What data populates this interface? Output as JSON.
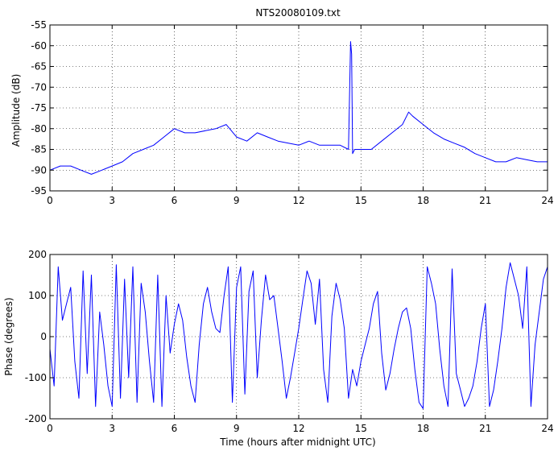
{
  "chart_data": [
    {
      "type": "line",
      "title": "NTS20080109.txt",
      "xlabel": "",
      "ylabel": "Amplitude (dB)",
      "xlim": [
        0,
        24
      ],
      "ylim": [
        -95,
        -55
      ],
      "xticks": [
        0,
        3,
        6,
        9,
        12,
        15,
        18,
        21,
        24
      ],
      "yticks": [
        -95,
        -90,
        -85,
        -80,
        -75,
        -70,
        -65,
        -60,
        -55
      ],
      "grid": true,
      "color": "#0000ff",
      "series": [
        {
          "x": [
            0,
            0.5,
            1,
            1.5,
            2,
            2.5,
            3,
            3.5,
            4,
            4.5,
            5,
            5.5,
            6,
            6.5,
            7,
            7.5,
            8,
            8.5,
            9,
            9.5,
            10,
            10.5,
            11,
            11.5,
            12,
            12.5,
            13,
            13.5,
            14,
            14.4,
            14.5,
            14.55,
            14.6,
            14.7,
            15,
            15.5,
            16,
            16.5,
            17,
            17.3,
            17.5,
            18,
            18.5,
            19,
            19.5,
            20,
            20.5,
            21,
            21.5,
            22,
            22.5,
            23,
            23.5,
            24
          ],
          "y": [
            -90,
            -89,
            -89,
            -90,
            -91,
            -90,
            -89,
            -88,
            -86,
            -85,
            -84,
            -82,
            -80,
            -81,
            -81,
            -80.5,
            -80,
            -79,
            -82,
            -83,
            -81,
            -82,
            -83,
            -83.5,
            -84,
            -83,
            -84,
            -84,
            -84,
            -85,
            -59,
            -62,
            -86,
            -85,
            -85,
            -85,
            -83,
            -81,
            -79,
            -76,
            -77,
            -79,
            -81,
            -82.5,
            -83.5,
            -84.5,
            -86,
            -87,
            -88,
            -88,
            -87,
            -87.5,
            -88,
            -88
          ]
        }
      ]
    },
    {
      "type": "line",
      "title": "",
      "xlabel": "Time (hours after midnight UTC)",
      "ylabel": "Phase (degrees)",
      "xlim": [
        0,
        24
      ],
      "ylim": [
        -200,
        200
      ],
      "xticks": [
        0,
        3,
        6,
        9,
        12,
        15,
        18,
        21,
        24
      ],
      "yticks": [
        -200,
        -100,
        0,
        100,
        200
      ],
      "grid": true,
      "color": "#0000ff",
      "series": [
        {
          "x": [
            0,
            0.2,
            0.4,
            0.6,
            0.8,
            1,
            1.2,
            1.4,
            1.6,
            1.8,
            2,
            2.2,
            2.4,
            2.6,
            2.8,
            3,
            3.2,
            3.4,
            3.6,
            3.8,
            4,
            4.2,
            4.4,
            4.6,
            4.8,
            5,
            5.2,
            5.4,
            5.6,
            5.8,
            6,
            6.2,
            6.4,
            6.6,
            6.8,
            7,
            7.2,
            7.4,
            7.6,
            7.8,
            8,
            8.2,
            8.4,
            8.6,
            8.8,
            9,
            9.2,
            9.4,
            9.6,
            9.8,
            10,
            10.2,
            10.4,
            10.6,
            10.8,
            11,
            11.2,
            11.4,
            11.6,
            11.8,
            12,
            12.2,
            12.4,
            12.6,
            12.8,
            13,
            13.2,
            13.4,
            13.6,
            13.8,
            14,
            14.2,
            14.4,
            14.6,
            14.8,
            15,
            15.2,
            15.4,
            15.6,
            15.8,
            16,
            16.2,
            16.4,
            16.6,
            16.8,
            17,
            17.2,
            17.4,
            17.6,
            17.8,
            18,
            18.2,
            18.4,
            18.6,
            18.8,
            19,
            19.2,
            19.4,
            19.6,
            19.8,
            20,
            20.2,
            20.4,
            20.6,
            20.8,
            21,
            21.2,
            21.4,
            21.6,
            21.8,
            22,
            22.2,
            22.4,
            22.6,
            22.8,
            23,
            23.2,
            23.4,
            23.6,
            23.8,
            24
          ],
          "y": [
            -30,
            -120,
            170,
            40,
            80,
            120,
            -60,
            -150,
            160,
            -90,
            150,
            -170,
            60,
            -20,
            -120,
            -170,
            175,
            -150,
            140,
            -100,
            170,
            -160,
            130,
            60,
            -60,
            -160,
            150,
            -170,
            100,
            -40,
            30,
            80,
            40,
            -50,
            -120,
            -160,
            -20,
            80,
            120,
            60,
            20,
            10,
            100,
            170,
            -160,
            120,
            170,
            -140,
            110,
            160,
            -100,
            40,
            150,
            90,
            100,
            20,
            -60,
            -150,
            -100,
            -40,
            20,
            90,
            160,
            130,
            30,
            140,
            -80,
            -160,
            50,
            130,
            90,
            20,
            -150,
            -80,
            -120,
            -60,
            -20,
            20,
            80,
            110,
            -40,
            -130,
            -90,
            -30,
            20,
            60,
            70,
            20,
            -80,
            -160,
            -175,
            170,
            130,
            80,
            -30,
            -120,
            -170,
            165,
            -90,
            -130,
            -170,
            -150,
            -120,
            -60,
            20,
            80,
            -170,
            -130,
            -60,
            20,
            120,
            180,
            140,
            100,
            20,
            170,
            -170,
            -20,
            60,
            140,
            170
          ]
        }
      ]
    }
  ]
}
